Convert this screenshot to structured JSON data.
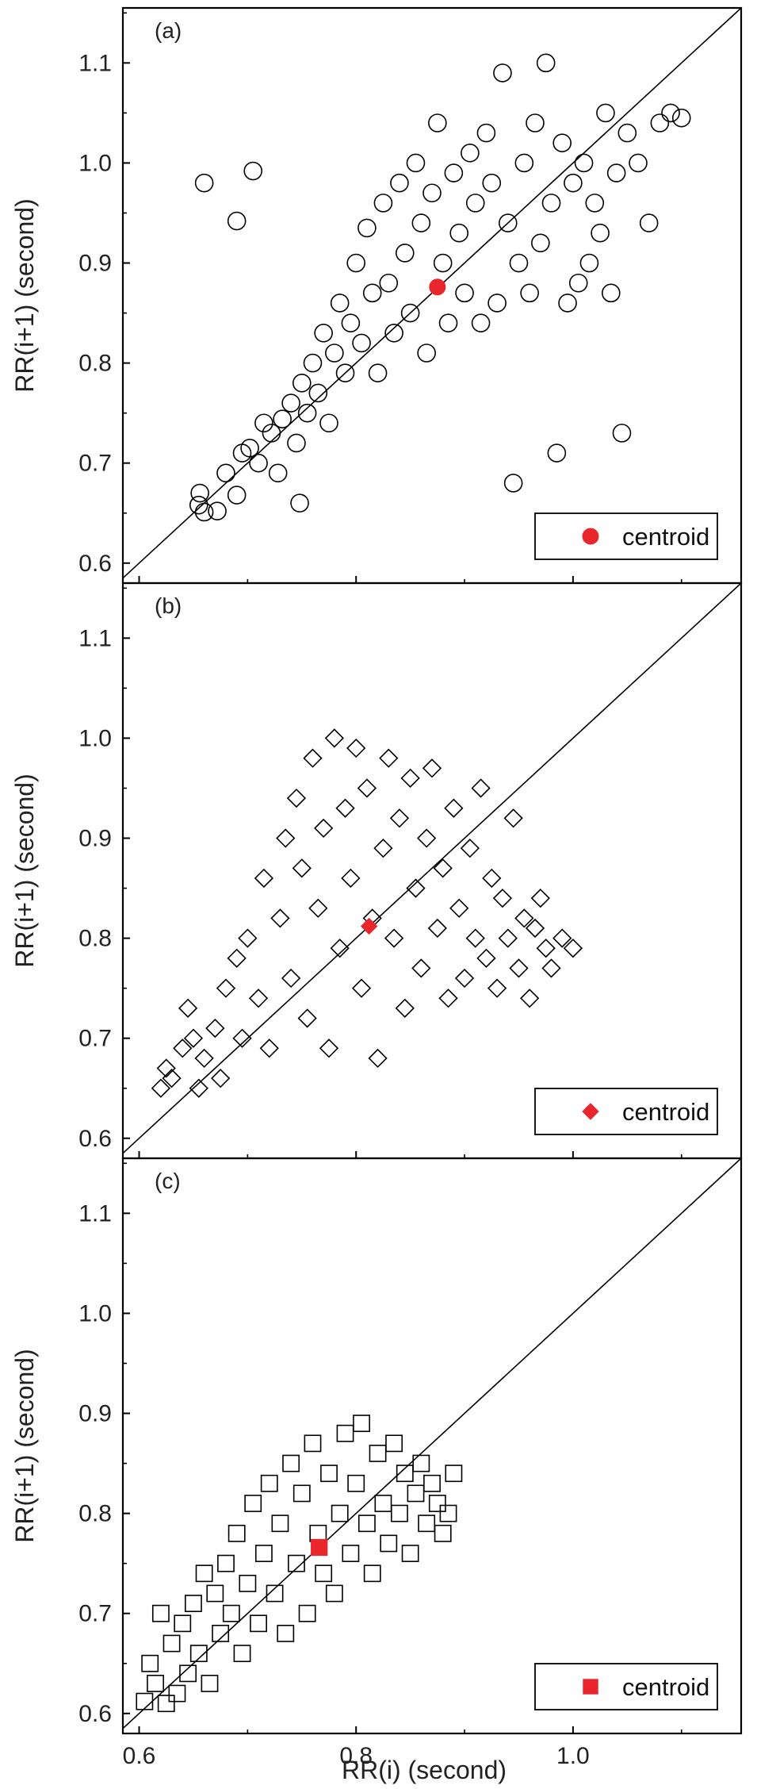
{
  "shared": {
    "xlabel": "RR(i) (second)",
    "x_ticks": [
      "0.6",
      "0.8",
      "1.0"
    ],
    "y_ticks": [
      "0.6",
      "0.7",
      "0.8",
      "0.9",
      "1.0",
      "1.1"
    ],
    "xlim": [
      0.585,
      1.155
    ],
    "ylim": [
      0.58,
      1.155
    ],
    "colors": {
      "marker_edge": "#000000",
      "centroid": "#e8262c",
      "identity_line": "#000000"
    }
  },
  "chart_data": [
    {
      "type": "scatter",
      "panel": "(a)",
      "ylabel": "RR(i+1) (second)",
      "marker": "circle",
      "xlim": [
        0.585,
        1.155
      ],
      "ylim": [
        0.58,
        1.155
      ],
      "legend": {
        "label": "centroid",
        "placement": "bottom-right"
      },
      "reference_line": "y = x",
      "centroid": {
        "x": 0.875,
        "y": 0.876
      },
      "series": [
        {
          "points": [
            [
              0.66,
              0.98
            ],
            [
              0.69,
              0.942
            ],
            [
              0.705,
              0.992
            ],
            [
              0.655,
              0.658
            ],
            [
              0.66,
              0.651
            ],
            [
              0.672,
              0.652
            ],
            [
              0.656,
              0.67
            ],
            [
              0.68,
              0.69
            ],
            [
              0.69,
              0.668
            ],
            [
              0.695,
              0.71
            ],
            [
              0.702,
              0.715
            ],
            [
              0.71,
              0.7
            ],
            [
              0.715,
              0.74
            ],
            [
              0.722,
              0.73
            ],
            [
              0.728,
              0.69
            ],
            [
              0.732,
              0.744
            ],
            [
              0.74,
              0.76
            ],
            [
              0.745,
              0.72
            ],
            [
              0.748,
              0.66
            ],
            [
              0.75,
              0.78
            ],
            [
              0.755,
              0.75
            ],
            [
              0.76,
              0.8
            ],
            [
              0.765,
              0.77
            ],
            [
              0.77,
              0.83
            ],
            [
              0.775,
              0.74
            ],
            [
              0.78,
              0.81
            ],
            [
              0.785,
              0.86
            ],
            [
              0.79,
              0.79
            ],
            [
              0.795,
              0.84
            ],
            [
              0.8,
              0.9
            ],
            [
              0.805,
              0.82
            ],
            [
              0.81,
              0.935
            ],
            [
              0.815,
              0.87
            ],
            [
              0.82,
              0.79
            ],
            [
              0.825,
              0.96
            ],
            [
              0.83,
              0.88
            ],
            [
              0.835,
              0.83
            ],
            [
              0.84,
              0.98
            ],
            [
              0.845,
              0.91
            ],
            [
              0.85,
              0.85
            ],
            [
              0.855,
              1.0
            ],
            [
              0.86,
              0.94
            ],
            [
              0.865,
              0.81
            ],
            [
              0.87,
              0.97
            ],
            [
              0.875,
              1.04
            ],
            [
              0.88,
              0.9
            ],
            [
              0.885,
              0.84
            ],
            [
              0.89,
              0.99
            ],
            [
              0.895,
              0.93
            ],
            [
              0.9,
              0.87
            ],
            [
              0.905,
              1.01
            ],
            [
              0.91,
              0.96
            ],
            [
              0.915,
              0.84
            ],
            [
              0.92,
              1.03
            ],
            [
              0.925,
              0.98
            ],
            [
              0.93,
              0.86
            ],
            [
              0.935,
              1.09
            ],
            [
              0.94,
              0.94
            ],
            [
              0.945,
              0.68
            ],
            [
              0.95,
              0.9
            ],
            [
              0.955,
              1.0
            ],
            [
              0.96,
              0.87
            ],
            [
              0.965,
              1.04
            ],
            [
              0.97,
              0.92
            ],
            [
              0.975,
              1.1
            ],
            [
              0.98,
              0.96
            ],
            [
              0.985,
              0.71
            ],
            [
              0.99,
              1.02
            ],
            [
              0.995,
              0.86
            ],
            [
              1.0,
              0.98
            ],
            [
              1.005,
              0.88
            ],
            [
              1.01,
              1.0
            ],
            [
              1.015,
              0.9
            ],
            [
              1.02,
              0.96
            ],
            [
              1.025,
              0.93
            ],
            [
              1.03,
              1.05
            ],
            [
              1.035,
              0.87
            ],
            [
              1.04,
              0.99
            ],
            [
              1.045,
              0.73
            ],
            [
              1.05,
              1.03
            ],
            [
              1.06,
              1.0
            ],
            [
              1.07,
              0.94
            ],
            [
              1.08,
              1.04
            ],
            [
              1.09,
              1.05
            ],
            [
              1.1,
              1.045
            ]
          ]
        }
      ]
    },
    {
      "type": "scatter",
      "panel": "(b)",
      "ylabel": "RR(i+1) (second)",
      "marker": "diamond",
      "xlim": [
        0.585,
        1.155
      ],
      "ylim": [
        0.58,
        1.155
      ],
      "legend": {
        "label": "centroid",
        "placement": "bottom-right"
      },
      "reference_line": "y = x",
      "centroid": {
        "x": 0.812,
        "y": 0.812
      },
      "series": [
        {
          "points": [
            [
              0.62,
              0.65
            ],
            [
              0.625,
              0.67
            ],
            [
              0.63,
              0.66
            ],
            [
              0.64,
              0.69
            ],
            [
              0.645,
              0.73
            ],
            [
              0.65,
              0.7
            ],
            [
              0.655,
              0.65
            ],
            [
              0.66,
              0.68
            ],
            [
              0.67,
              0.71
            ],
            [
              0.675,
              0.66
            ],
            [
              0.68,
              0.75
            ],
            [
              0.69,
              0.78
            ],
            [
              0.695,
              0.7
            ],
            [
              0.7,
              0.8
            ],
            [
              0.71,
              0.74
            ],
            [
              0.715,
              0.86
            ],
            [
              0.72,
              0.69
            ],
            [
              0.73,
              0.82
            ],
            [
              0.735,
              0.9
            ],
            [
              0.74,
              0.76
            ],
            [
              0.745,
              0.94
            ],
            [
              0.75,
              0.87
            ],
            [
              0.755,
              0.72
            ],
            [
              0.76,
              0.98
            ],
            [
              0.765,
              0.83
            ],
            [
              0.77,
              0.91
            ],
            [
              0.775,
              0.69
            ],
            [
              0.78,
              1.0
            ],
            [
              0.785,
              0.79
            ],
            [
              0.79,
              0.93
            ],
            [
              0.795,
              0.86
            ],
            [
              0.8,
              0.99
            ],
            [
              0.805,
              0.75
            ],
            [
              0.81,
              0.95
            ],
            [
              0.815,
              0.82
            ],
            [
              0.82,
              0.68
            ],
            [
              0.825,
              0.89
            ],
            [
              0.83,
              0.98
            ],
            [
              0.835,
              0.8
            ],
            [
              0.84,
              0.92
            ],
            [
              0.845,
              0.73
            ],
            [
              0.85,
              0.96
            ],
            [
              0.855,
              0.85
            ],
            [
              0.86,
              0.77
            ],
            [
              0.865,
              0.9
            ],
            [
              0.87,
              0.97
            ],
            [
              0.875,
              0.81
            ],
            [
              0.88,
              0.87
            ],
            [
              0.885,
              0.74
            ],
            [
              0.89,
              0.93
            ],
            [
              0.895,
              0.83
            ],
            [
              0.9,
              0.76
            ],
            [
              0.905,
              0.89
            ],
            [
              0.91,
              0.8
            ],
            [
              0.915,
              0.95
            ],
            [
              0.92,
              0.78
            ],
            [
              0.925,
              0.86
            ],
            [
              0.93,
              0.75
            ],
            [
              0.935,
              0.84
            ],
            [
              0.94,
              0.8
            ],
            [
              0.945,
              0.92
            ],
            [
              0.95,
              0.77
            ],
            [
              0.955,
              0.82
            ],
            [
              0.96,
              0.74
            ],
            [
              0.965,
              0.81
            ],
            [
              0.97,
              0.84
            ],
            [
              0.975,
              0.79
            ],
            [
              0.98,
              0.77
            ],
            [
              0.99,
              0.8
            ],
            [
              1.0,
              0.79
            ]
          ]
        }
      ]
    },
    {
      "type": "scatter",
      "panel": "(c)",
      "ylabel": "RR(i+1) (second)",
      "marker": "square",
      "xlim": [
        0.585,
        1.155
      ],
      "ylim": [
        0.58,
        1.155
      ],
      "legend": {
        "label": "centroid",
        "placement": "bottom-right"
      },
      "reference_line": "y = x",
      "centroid": {
        "x": 0.766,
        "y": 0.766
      },
      "series": [
        {
          "points": [
            [
              0.605,
              0.612
            ],
            [
              0.61,
              0.65
            ],
            [
              0.615,
              0.63
            ],
            [
              0.62,
              0.7
            ],
            [
              0.625,
              0.61
            ],
            [
              0.63,
              0.67
            ],
            [
              0.635,
              0.62
            ],
            [
              0.64,
              0.69
            ],
            [
              0.645,
              0.64
            ],
            [
              0.65,
              0.71
            ],
            [
              0.655,
              0.66
            ],
            [
              0.66,
              0.74
            ],
            [
              0.665,
              0.63
            ],
            [
              0.67,
              0.72
            ],
            [
              0.675,
              0.68
            ],
            [
              0.68,
              0.75
            ],
            [
              0.685,
              0.7
            ],
            [
              0.69,
              0.78
            ],
            [
              0.695,
              0.66
            ],
            [
              0.7,
              0.73
            ],
            [
              0.705,
              0.81
            ],
            [
              0.71,
              0.69
            ],
            [
              0.715,
              0.76
            ],
            [
              0.72,
              0.83
            ],
            [
              0.725,
              0.72
            ],
            [
              0.73,
              0.79
            ],
            [
              0.735,
              0.68
            ],
            [
              0.74,
              0.85
            ],
            [
              0.745,
              0.75
            ],
            [
              0.75,
              0.82
            ],
            [
              0.755,
              0.7
            ],
            [
              0.76,
              0.87
            ],
            [
              0.765,
              0.78
            ],
            [
              0.77,
              0.74
            ],
            [
              0.775,
              0.84
            ],
            [
              0.78,
              0.72
            ],
            [
              0.785,
              0.8
            ],
            [
              0.79,
              0.88
            ],
            [
              0.795,
              0.76
            ],
            [
              0.8,
              0.83
            ],
            [
              0.805,
              0.89
            ],
            [
              0.81,
              0.79
            ],
            [
              0.815,
              0.74
            ],
            [
              0.82,
              0.86
            ],
            [
              0.825,
              0.81
            ],
            [
              0.83,
              0.77
            ],
            [
              0.835,
              0.87
            ],
            [
              0.84,
              0.8
            ],
            [
              0.845,
              0.84
            ],
            [
              0.85,
              0.76
            ],
            [
              0.855,
              0.82
            ],
            [
              0.86,
              0.85
            ],
            [
              0.865,
              0.79
            ],
            [
              0.87,
              0.83
            ],
            [
              0.875,
              0.81
            ],
            [
              0.88,
              0.78
            ],
            [
              0.885,
              0.8
            ],
            [
              0.89,
              0.84
            ]
          ]
        }
      ]
    }
  ]
}
